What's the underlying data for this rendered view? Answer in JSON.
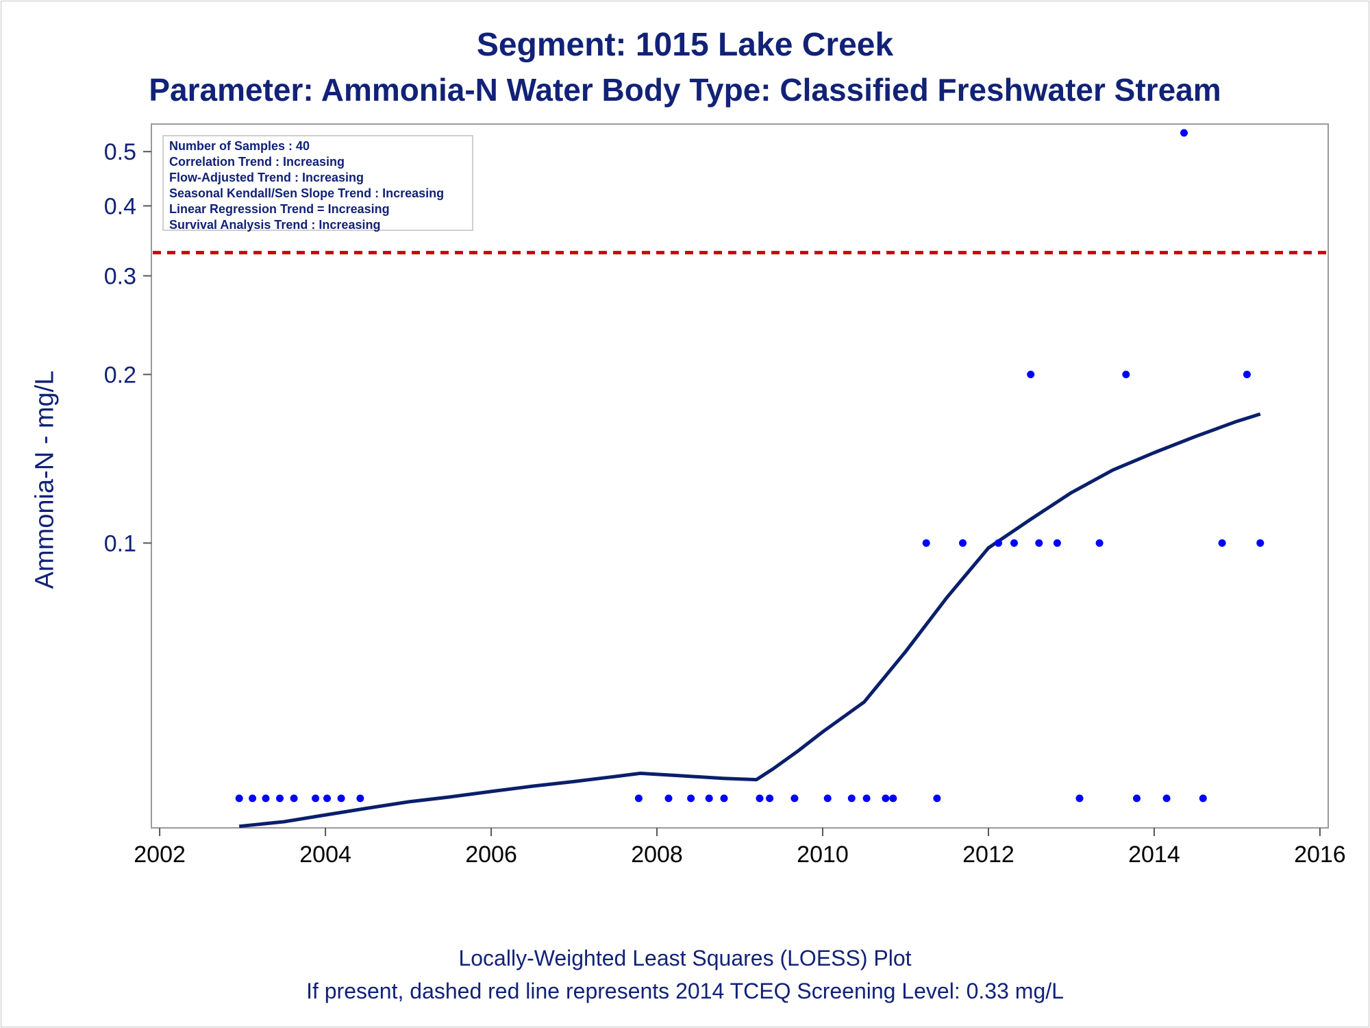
{
  "title": "Segment: 1015  Lake Creek",
  "subtitle": "Parameter: Ammonia-N   Water Body Type: Classified Freshwater Stream",
  "stats": [
    "Number of Samples : 40",
    "Correlation Trend : Increasing",
    "Flow-Adjusted Trend : Increasing",
    "Seasonal Kendall/Sen Slope Trend : Increasing",
    "Linear Regression Trend = Increasing",
    "Survival Analysis Trend : Increasing"
  ],
  "footnote1": "Locally-Weighted Least Squares (LOESS) Plot",
  "footnote2": "If present, dashed red line represents 2014 TCEQ Screening Level: 0.33 mg/L",
  "colors": {
    "text": "#112277",
    "points": "#0000ff",
    "loess": "#0a1f6b",
    "reference": "#cc0000",
    "axis": "#999999"
  },
  "chart_data": {
    "type": "scatter",
    "ylabel": "Ammonia-N - mg/L",
    "xlabel": "",
    "x_scale": "date",
    "y_scale": "log",
    "xlim": [
      2001.9,
      2016.1
    ],
    "ylim": [
      0.031,
      0.56
    ],
    "x_ticks": [
      2002,
      2004,
      2006,
      2008,
      2010,
      2012,
      2014,
      2016
    ],
    "x_tick_labels": [
      "2002",
      "2004",
      "2006",
      "2008",
      "2010",
      "2012",
      "2014",
      "2016"
    ],
    "y_ticks": [
      0.1,
      0.2,
      0.3,
      0.4,
      0.5
    ],
    "y_tick_labels": [
      "0.1",
      "0.2",
      "0.3",
      "0.4",
      "0.5"
    ],
    "grid": false,
    "reference_line": {
      "y": 0.33,
      "style": "dashed"
    },
    "series": [
      {
        "style": "points",
        "points": [
          [
            2002.96,
            0.035
          ],
          [
            2003.12,
            0.035
          ],
          [
            2003.28,
            0.035
          ],
          [
            2003.45,
            0.035
          ],
          [
            2003.62,
            0.035
          ],
          [
            2003.88,
            0.035
          ],
          [
            2004.02,
            0.035
          ],
          [
            2004.19,
            0.035
          ],
          [
            2004.42,
            0.035
          ],
          [
            2007.78,
            0.035
          ],
          [
            2008.14,
            0.035
          ],
          [
            2008.41,
            0.035
          ],
          [
            2008.63,
            0.035
          ],
          [
            2008.81,
            0.035
          ],
          [
            2009.24,
            0.035
          ],
          [
            2009.36,
            0.035
          ],
          [
            2009.66,
            0.035
          ],
          [
            2010.06,
            0.035
          ],
          [
            2010.35,
            0.035
          ],
          [
            2010.53,
            0.035
          ],
          [
            2010.76,
            0.035
          ],
          [
            2010.85,
            0.035
          ],
          [
            2011.38,
            0.035
          ],
          [
            2011.25,
            0.1
          ],
          [
            2011.69,
            0.1
          ],
          [
            2012.12,
            0.1
          ],
          [
            2012.31,
            0.1
          ],
          [
            2012.61,
            0.1
          ],
          [
            2012.83,
            0.1
          ],
          [
            2013.34,
            0.1
          ],
          [
            2014.82,
            0.1
          ],
          [
            2015.28,
            0.1
          ],
          [
            2012.51,
            0.2
          ],
          [
            2013.66,
            0.2
          ],
          [
            2015.12,
            0.2
          ],
          [
            2014.36,
            0.54
          ],
          [
            2013.1,
            0.035
          ],
          [
            2013.79,
            0.035
          ],
          [
            2014.15,
            0.035
          ],
          [
            2014.59,
            0.035
          ]
        ]
      },
      {
        "style": "line",
        "points": [
          [
            2002.96,
            0.0312
          ],
          [
            2003.5,
            0.0318
          ],
          [
            2004.0,
            0.0327
          ],
          [
            2004.5,
            0.0336
          ],
          [
            2005.0,
            0.0345
          ],
          [
            2005.5,
            0.0352
          ],
          [
            2006.0,
            0.036
          ],
          [
            2006.5,
            0.0368
          ],
          [
            2007.0,
            0.0375
          ],
          [
            2007.5,
            0.0383
          ],
          [
            2007.8,
            0.0388
          ],
          [
            2008.3,
            0.0384
          ],
          [
            2008.8,
            0.038
          ],
          [
            2009.2,
            0.0378
          ],
          [
            2009.4,
            0.0395
          ],
          [
            2009.7,
            0.0425
          ],
          [
            2010.0,
            0.046
          ],
          [
            2010.5,
            0.052
          ],
          [
            2011.0,
            0.064
          ],
          [
            2011.5,
            0.08
          ],
          [
            2012.0,
            0.098
          ],
          [
            2012.5,
            0.11
          ],
          [
            2013.0,
            0.123
          ],
          [
            2013.5,
            0.135
          ],
          [
            2014.0,
            0.145
          ],
          [
            2014.5,
            0.155
          ],
          [
            2015.0,
            0.165
          ],
          [
            2015.28,
            0.17
          ]
        ]
      }
    ]
  }
}
